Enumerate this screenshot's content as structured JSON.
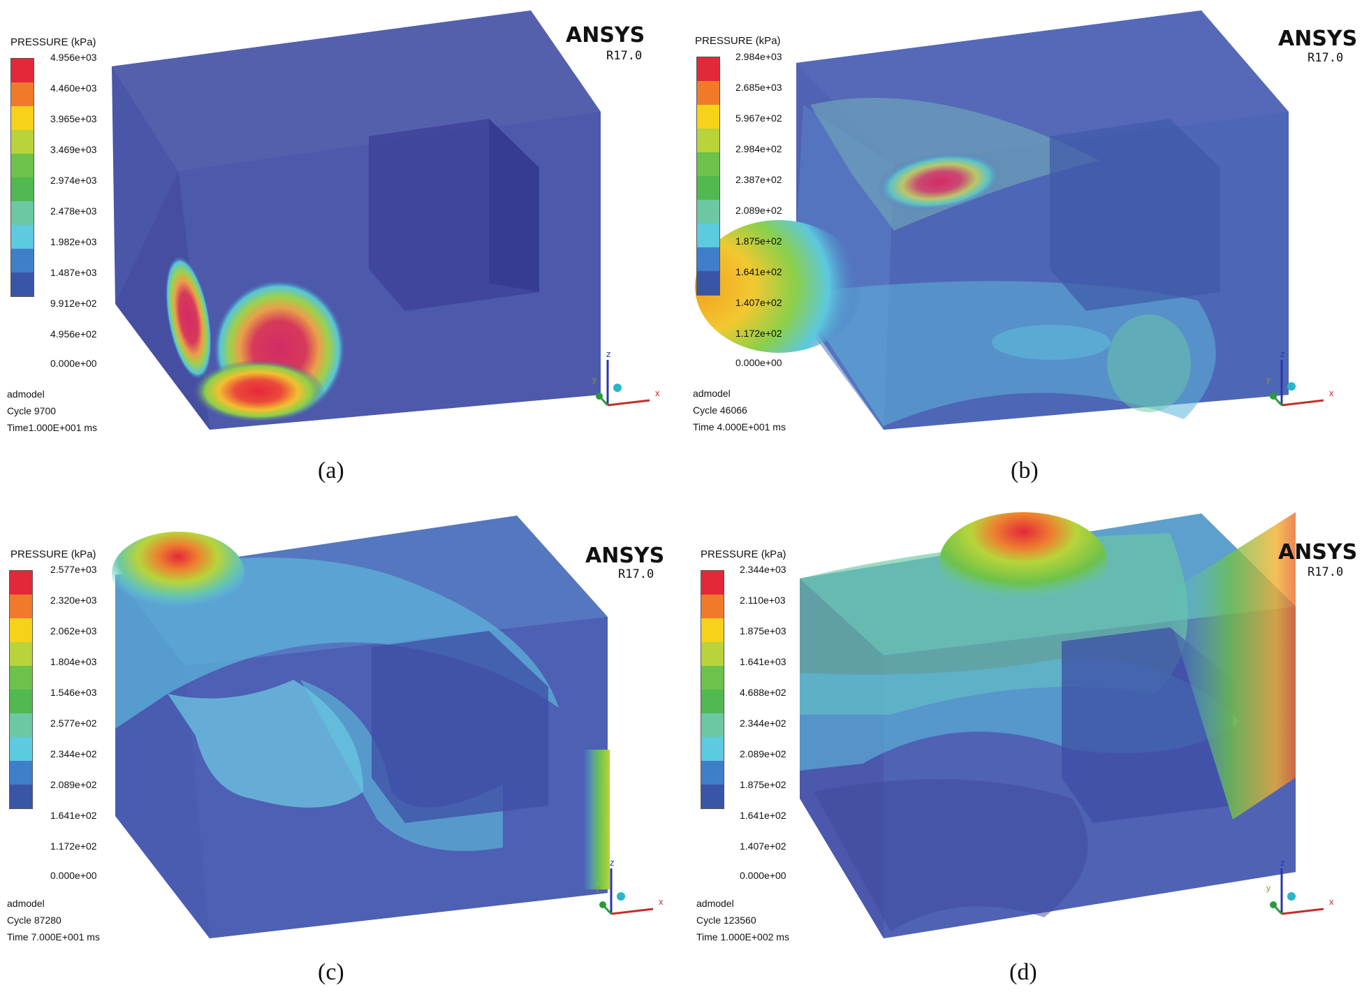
{
  "panels": [
    {
      "id": "a",
      "legend_title": "PRESSURE (kPa)",
      "ticks": [
        "4.956e+03",
        "4.460e+03",
        "3.965e+03",
        "3.469e+03",
        "2.974e+03",
        "2.478e+03",
        "1.982e+03",
        "1.487e+03",
        "9.912e+02",
        "4.956e+02",
        "0.000e+00"
      ],
      "brand": "ANSYS",
      "version": "R17.0",
      "model": "admodel",
      "cycle": "Cycle 9700",
      "time": "Time1.000E+001 ms",
      "caption": "(a)"
    },
    {
      "id": "b",
      "legend_title": "PRESSURE (kPa)",
      "ticks": [
        "2.984e+03",
        "2.685e+03",
        "5.967e+02",
        "2.984e+02",
        "2.387e+02",
        "2.089e+02",
        "1.875e+02",
        "1.641e+02",
        "1.407e+02",
        "1.172e+02",
        "0.000e+00"
      ],
      "brand": "ANSYS",
      "version": "R17.0",
      "model": "admodel",
      "cycle": "Cycle 46066",
      "time": "Time 4.000E+001 ms",
      "caption": "(b)"
    },
    {
      "id": "c",
      "legend_title": "PRESSURE (kPa)",
      "ticks": [
        "2.577e+03",
        "2.320e+03",
        "2.062e+03",
        "1.804e+03",
        "1.546e+03",
        "2.577e+02",
        "2.344e+02",
        "2.089e+02",
        "1.641e+02",
        "1.172e+02",
        "0.000e+00"
      ],
      "brand": "ANSYS",
      "version": "R17.0",
      "model": "admodel",
      "cycle": "Cycle 87280",
      "time": "Time 7.000E+001 ms",
      "caption": "(c)"
    },
    {
      "id": "d",
      "legend_title": "PRESSURE (kPa)",
      "ticks": [
        "2.344e+03",
        "2.110e+03",
        "1.875e+03",
        "1.641e+03",
        "4.688e+02",
        "2.344e+02",
        "2.089e+02",
        "1.875e+02",
        "1.641e+02",
        "1.407e+02",
        "0.000e+00"
      ],
      "brand": "ANSYS",
      "version": "R17.0",
      "model": "admodel",
      "cycle": "Cycle 123560",
      "time": "Time 1.000E+002 ms",
      "caption": "(d)"
    }
  ],
  "axes": {
    "z": "z",
    "y": "y",
    "x": "x"
  },
  "colors": {
    "scale": [
      "#e3283a",
      "#f07a2a",
      "#f7d21b",
      "#b8d43a",
      "#6cc24a",
      "#52b850",
      "#6cc8a2",
      "#5ccbe0",
      "#3f7fc9",
      "#3b55a6"
    ],
    "background_blue": "#4a56a8",
    "face_dark": "#3c3f95",
    "face_mid": "#5661b0"
  }
}
